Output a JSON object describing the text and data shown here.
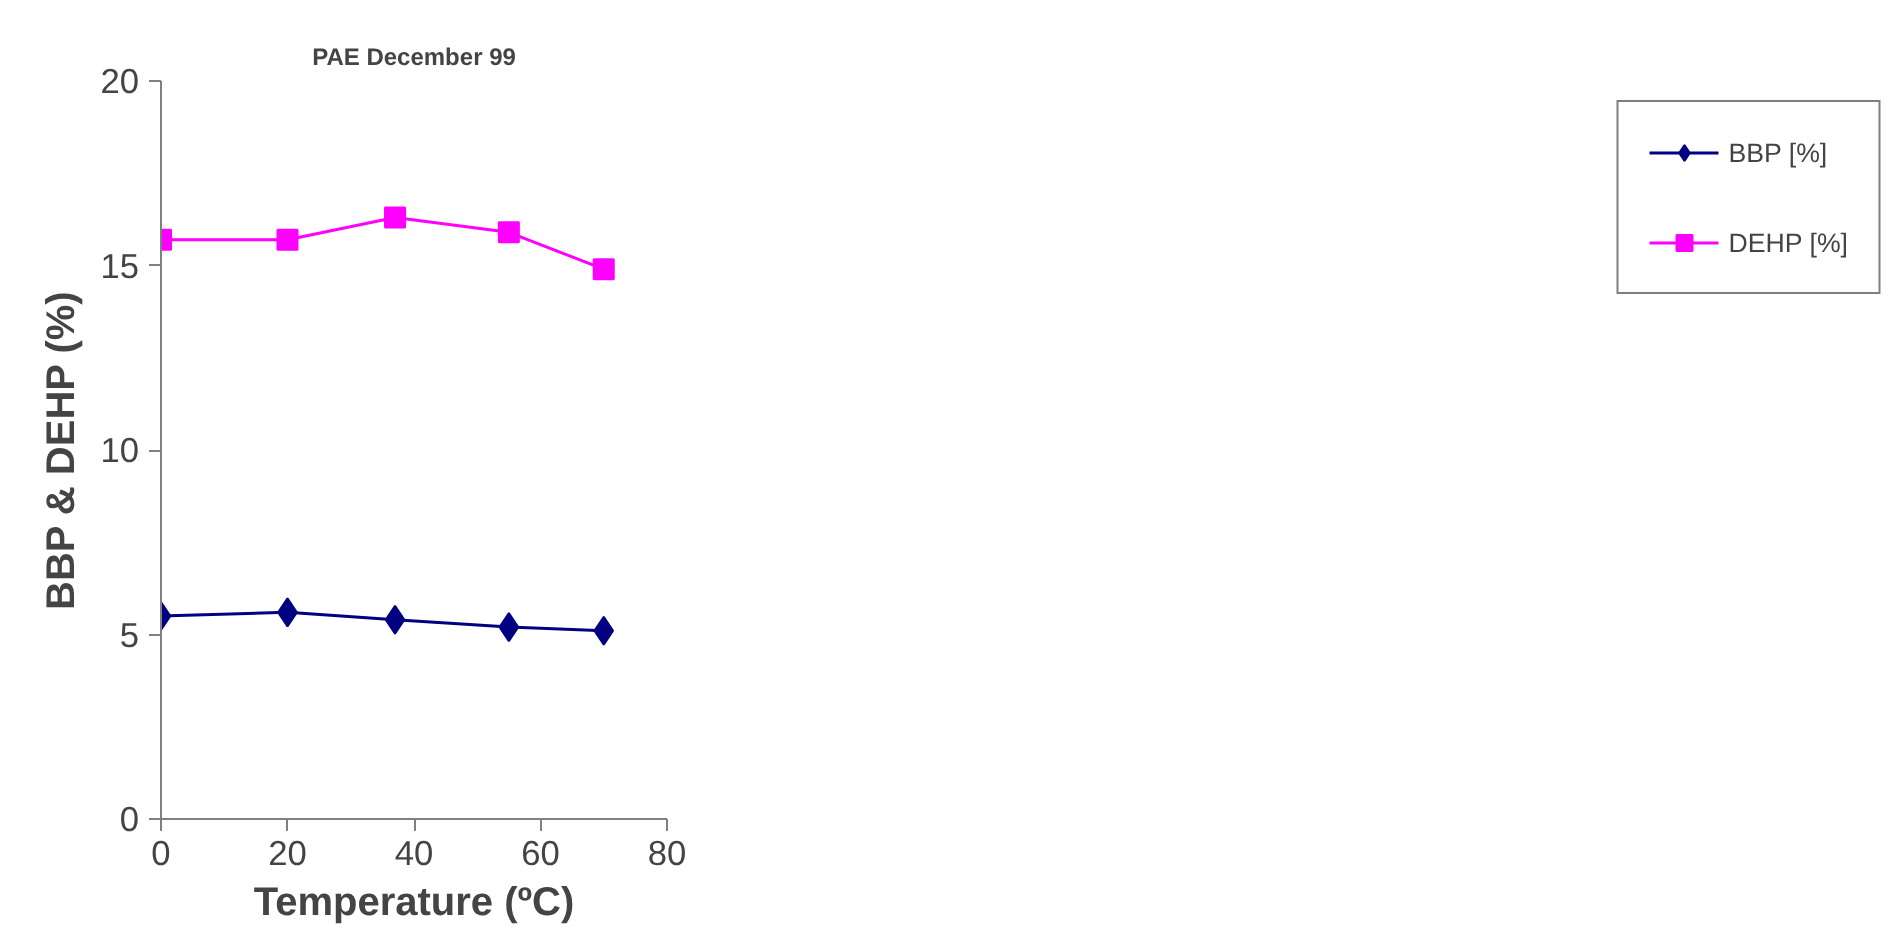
{
  "chart_data": {
    "type": "line",
    "title": "PAE December 99",
    "xlabel": "Temperature (ºC)",
    "ylabel": "BBP & DEHP (%)",
    "x": [
      0,
      20,
      37,
      55,
      70
    ],
    "series": [
      {
        "name": "BBP [%]",
        "color": "#000080",
        "marker": "diamond",
        "values": [
          5.5,
          5.6,
          5.4,
          5.2,
          5.1
        ]
      },
      {
        "name": "DEHP [%]",
        "color": "#ff00ff",
        "marker": "square",
        "values": [
          15.7,
          15.7,
          16.3,
          15.9,
          14.9
        ]
      }
    ],
    "xlim": [
      0,
      80
    ],
    "xticks": [
      0,
      20,
      40,
      60,
      80
    ],
    "ylim": [
      0,
      20
    ],
    "yticks": [
      0,
      5,
      10,
      15,
      20
    ],
    "grid": false,
    "legend": "right",
    "line_style": "solid"
  }
}
